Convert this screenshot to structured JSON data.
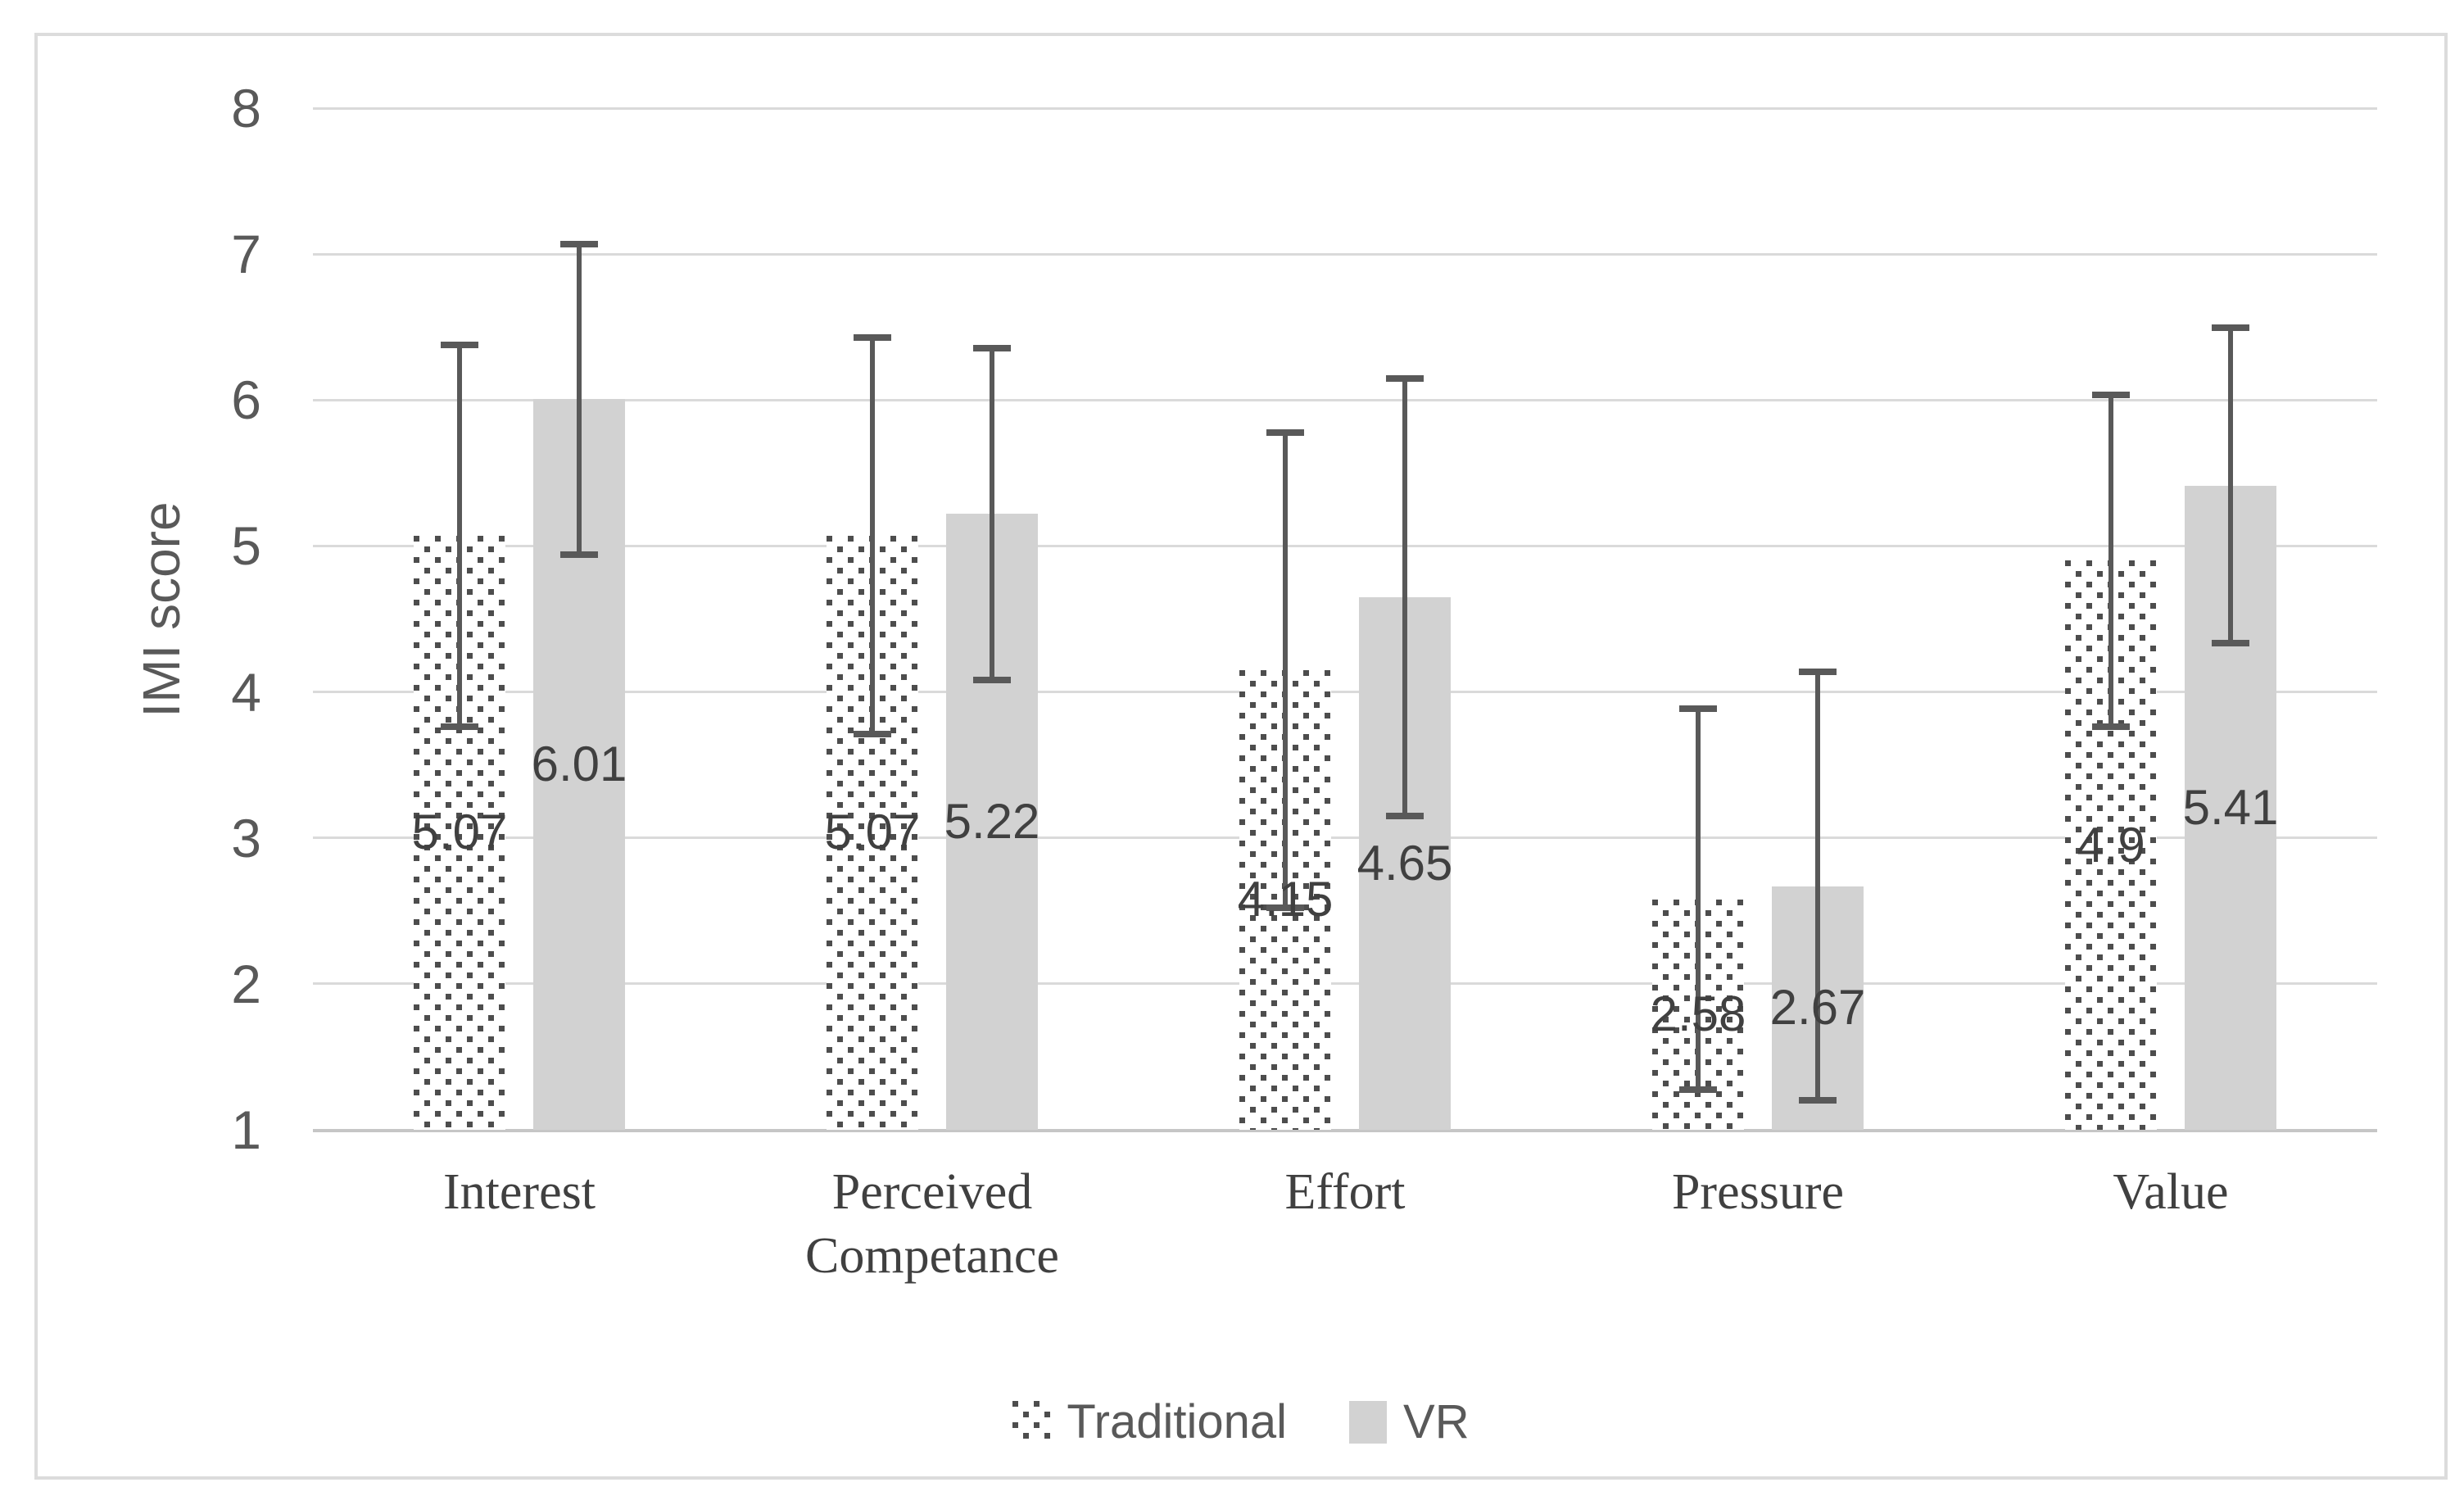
{
  "chart_data": {
    "type": "bar",
    "title": "",
    "xlabel": "",
    "ylabel": "IMI score",
    "ylim": [
      1,
      8
    ],
    "yticks": [
      1,
      2,
      3,
      4,
      5,
      6,
      7,
      8
    ],
    "grid": "horizontal",
    "legend_position": "bottom",
    "categories": [
      "Interest",
      "Perceived Competance",
      "Effort",
      "Pressure",
      "Value"
    ],
    "series": [
      {
        "name": "Traditional",
        "style": "dotted-pattern",
        "values": [
          5.07,
          5.07,
          4.15,
          2.58,
          4.9
        ],
        "labels": [
          "5.07",
          "5.07",
          "4.15",
          "2.58",
          "4.9"
        ],
        "error_high": [
          6.4,
          6.45,
          5.8,
          3.91,
          6.06
        ],
        "error_low": [
          3.74,
          3.69,
          2.5,
          1.25,
          3.74
        ]
      },
      {
        "name": "VR",
        "style": "solid",
        "fill": "#d2d2d2",
        "values": [
          6.01,
          5.22,
          4.65,
          2.67,
          5.41
        ],
        "labels": [
          "6.01",
          "5.22",
          "4.65",
          "2.67",
          "5.41"
        ],
        "error_high": [
          7.09,
          6.38,
          6.17,
          4.16,
          6.52
        ],
        "error_low": [
          4.92,
          4.06,
          3.13,
          1.18,
          4.31
        ]
      }
    ],
    "colors": {
      "vr_fill": "#d2d2d2",
      "pattern_dot": "#4d4d4d",
      "error_bar": "#595959",
      "gridline": "#dadada",
      "axis_line": "#c6c6c6",
      "axis_text": "#595959",
      "label_text": "#404040",
      "frame_border": "#dcdcdc"
    }
  }
}
